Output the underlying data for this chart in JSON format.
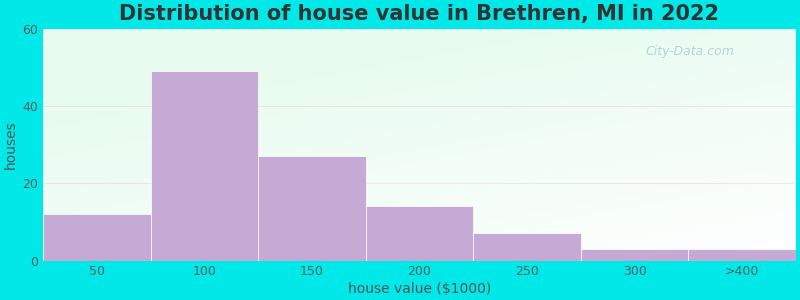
{
  "title": "Distribution of house value in Brethren, MI in 2022",
  "xlabel": "house value ($1000)",
  "ylabel": "houses",
  "bar_values": [
    12,
    49,
    27,
    14,
    7,
    3,
    3
  ],
  "bar_labels": [
    "50",
    "100",
    "150",
    "200",
    "250",
    "300",
    ">400"
  ],
  "bar_color": "#c4aad4",
  "bar_edgecolor": "#ffffff",
  "ylim": [
    0,
    60
  ],
  "yticks": [
    0,
    20,
    40,
    60
  ],
  "background_outer": "#00e8e8",
  "grid_color": "#e8c0cc",
  "title_fontsize": 15,
  "axis_fontsize": 10,
  "tick_fontsize": 9,
  "watermark_text": "City-Data.com",
  "figsize": [
    8.0,
    3.0
  ],
  "dpi": 100
}
